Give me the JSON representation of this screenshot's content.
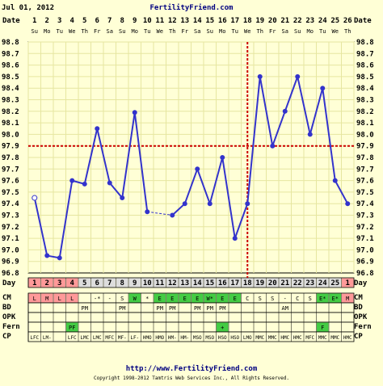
{
  "header": {
    "date": "Jul 01, 2012",
    "site": "FertilityFriend.com"
  },
  "row_labels": {
    "date": "Date",
    "day": "Day",
    "cm": "CM",
    "bd": "BD",
    "opk": "OPK",
    "fern": "Fern",
    "cp": "CP"
  },
  "footer": {
    "url": "http://www.FertilityFriend.com",
    "copyright": "Copyright 1998-2012 Tamtris Web Services Inc., All Rights Reserved."
  },
  "colors": {
    "line": "#3333cc",
    "coverline": "#cc0000",
    "green": "#44cc44",
    "pink": "#ff9999",
    "grid": "#e6e6a0"
  },
  "chart_data": {
    "type": "line",
    "title": "",
    "ylim": [
      96.8,
      98.8
    ],
    "y_ticks": [
      "98.8",
      "98.7",
      "98.6",
      "98.5",
      "98.4",
      "98.3",
      "98.2",
      "98.1",
      "98.0",
      "97.9",
      "97.8",
      "97.7",
      "97.6",
      "97.5",
      "97.4",
      "97.3",
      "97.2",
      "97.1",
      "97.0",
      "96.9",
      "96.8"
    ],
    "dates": [
      "1",
      "2",
      "3",
      "4",
      "5",
      "6",
      "7",
      "8",
      "9",
      "10",
      "11",
      "12",
      "13",
      "14",
      "15",
      "16",
      "17",
      "18",
      "19",
      "20",
      "21",
      "22",
      "23",
      "24",
      "25",
      "26"
    ],
    "weekdays": [
      "Su",
      "Mo",
      "Tu",
      "We",
      "Th",
      "Fr",
      "Sa",
      "Su",
      "Mo",
      "Tu",
      "We",
      "Th",
      "Fr",
      "Sa",
      "Su",
      "Mo",
      "Tu",
      "We",
      "Th",
      "Fr",
      "Sa",
      "Su",
      "Mo",
      "Tu",
      "We",
      "Th"
    ],
    "cycle_days": [
      "1",
      "2",
      "3",
      "4",
      "5",
      "6",
      "7",
      "8",
      "9",
      "10",
      "11",
      "12",
      "13",
      "14",
      "15",
      "16",
      "17",
      "18",
      "19",
      "20",
      "21",
      "22",
      "23",
      "24",
      "25",
      "1"
    ],
    "temps": [
      97.45,
      96.95,
      96.93,
      97.6,
      97.57,
      98.05,
      97.58,
      97.45,
      98.19,
      97.33,
      null,
      97.3,
      97.4,
      97.7,
      97.4,
      97.8,
      97.1,
      97.4,
      98.5,
      97.9,
      98.2,
      98.5,
      98.0,
      98.4,
      97.6,
      97.4
    ],
    "open_markers": [
      0
    ],
    "coverline": 97.9,
    "ovulation_day_index": 17,
    "cm": [
      "L",
      "M",
      "L",
      "L",
      "",
      "-*",
      "-",
      "S",
      "W",
      "*",
      "E",
      "E",
      "E",
      "E",
      "W*",
      "E",
      "E",
      "C",
      "S",
      "S",
      "-",
      "C",
      "S",
      "E*",
      "E*",
      "M"
    ],
    "cm_colors": [
      "pink",
      "pink",
      "pink",
      "pink",
      "",
      "",
      "",
      "",
      "green",
      "",
      "green",
      "green",
      "green",
      "green",
      "green",
      "green",
      "green",
      "",
      "",
      "",
      "",
      "",
      "",
      "green",
      "green",
      "pink"
    ],
    "bd": [
      "",
      "",
      "",
      "",
      "PM",
      "",
      "",
      "PM",
      "",
      "",
      "PM",
      "PM",
      "",
      "PM",
      "PM",
      "PM",
      "",
      "",
      "",
      "",
      "AM",
      "",
      "",
      "",
      "",
      ""
    ],
    "opk": [
      "",
      "",
      "",
      "",
      "",
      "",
      "",
      "",
      "",
      "",
      "",
      "",
      "",
      "",
      "",
      "",
      "",
      "",
      "",
      "",
      "",
      "",
      "",
      "",
      "",
      ""
    ],
    "fern": [
      "",
      "",
      "",
      "PF",
      "",
      "",
      "",
      "",
      "",
      "",
      "",
      "",
      "",
      "",
      "",
      "+",
      "",
      "",
      "",
      "",
      "",
      "",
      "",
      "F",
      "",
      ""
    ],
    "fern_colors": [
      "",
      "",
      "",
      "green",
      "",
      "",
      "",
      "",
      "",
      "",
      "",
      "",
      "",
      "",
      "",
      "green",
      "",
      "",
      "",
      "",
      "",
      "",
      "",
      "green",
      "",
      ""
    ],
    "cp": [
      "LFC",
      "LM-",
      "",
      "LFC",
      "LMC",
      "LMC",
      "MFC",
      "MF-",
      "LF-",
      "HMO",
      "HMO",
      "HM-",
      "HM-",
      "MSO",
      "MSO",
      "HSO",
      "HSO",
      "LMO",
      "MMC",
      "MMC",
      "HMC",
      "HMC",
      "MFC",
      "MMC",
      "MMC",
      "HMC"
    ]
  }
}
